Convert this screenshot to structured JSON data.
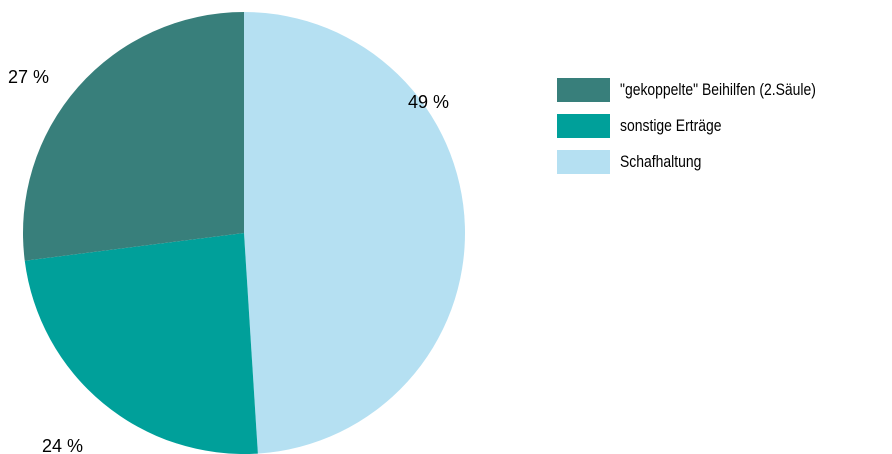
{
  "chart_data": {
    "type": "pie",
    "title": "",
    "categories": [
      "\"gekoppelte\" Beihilfen (2.Säule)",
      "sonstige Erträge",
      "Schafhaltung"
    ],
    "values": [
      27,
      24,
      49
    ],
    "value_labels": [
      "27 %",
      "24 %",
      "49 %"
    ],
    "colors": [
      "#387f7b",
      "#00a09a",
      "#b5e0f2"
    ],
    "legend_position": "right",
    "start": "12 o'clock, Schafhaltung first, clockwise"
  }
}
